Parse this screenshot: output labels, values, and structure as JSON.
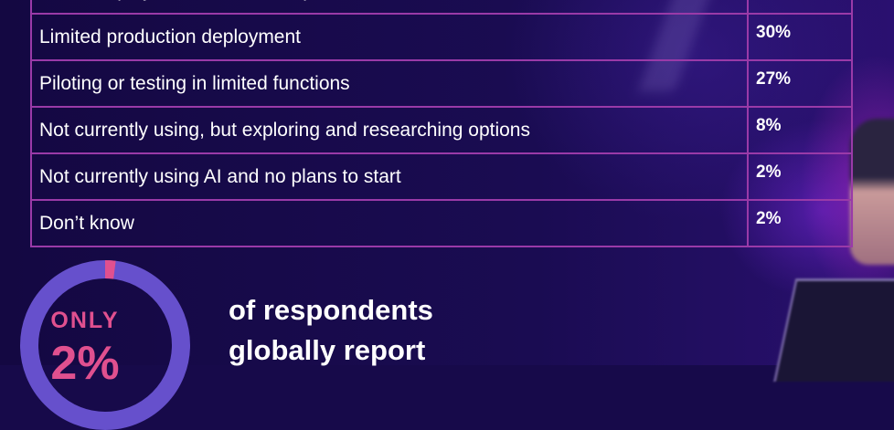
{
  "table": {
    "rows": [
      {
        "label": "Broad deployment across multiple functions",
        "value": ""
      },
      {
        "label": "Limited production deployment",
        "value": "30%"
      },
      {
        "label": "Piloting or testing in limited functions",
        "value": "27%"
      },
      {
        "label": "Not currently using, but exploring and researching options",
        "value": "8%"
      },
      {
        "label": "Not currently using AI and no plans to start",
        "value": "2%"
      },
      {
        "label": "Don’t know",
        "value": "2%"
      }
    ]
  },
  "stat": {
    "prefix": "ONLY",
    "value": "2%",
    "percent": 2,
    "ring_color": "#6650cc",
    "highlight_color": "#e0508f",
    "text_lines": [
      "of respondents",
      "globally report"
    ]
  }
}
